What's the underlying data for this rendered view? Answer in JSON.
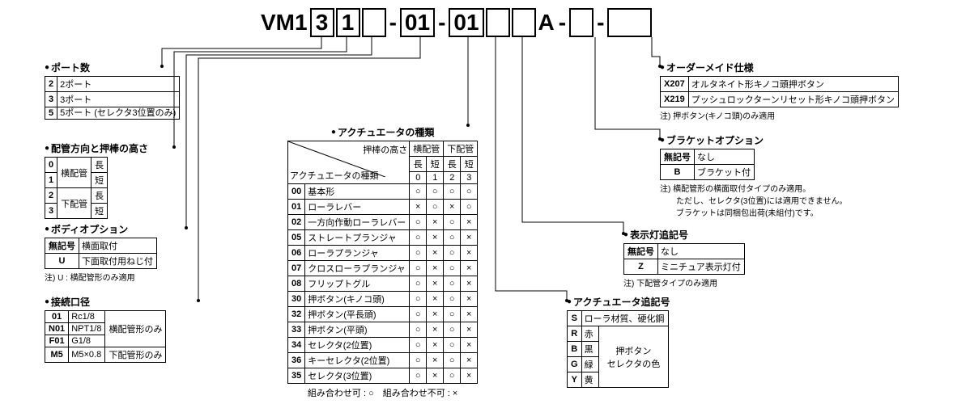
{
  "part_number": {
    "prefix": "VM1",
    "boxes": [
      "3",
      "1",
      "",
      "",
      "",
      "",
      "",
      "",
      ""
    ],
    "segment2_prefix": "01",
    "segment3_prefix": "01",
    "fixed_A": "A"
  },
  "colors": {
    "line": "#000000",
    "bg": "#ffffff",
    "text": "#000000"
  },
  "blocks": {
    "ports": {
      "title": "ポート数",
      "rows": [
        [
          "2",
          "2ポート"
        ],
        [
          "3",
          "3ポート"
        ],
        [
          "5",
          "5ポート\n(セレクタ3位置のみ)"
        ]
      ]
    },
    "piping": {
      "title": "配管方向と押棒の高さ",
      "rows": [
        [
          "0",
          "横配管",
          "長"
        ],
        [
          "1",
          "横配管",
          "短"
        ],
        [
          "2",
          "下配管",
          "長"
        ],
        [
          "3",
          "下配管",
          "短"
        ]
      ]
    },
    "body_option": {
      "title": "ボディオプション",
      "rows": [
        [
          "無記号",
          "横面取付"
        ],
        [
          "U",
          "下面取付用ねじ付"
        ]
      ],
      "note": "注) U : 横配管形のみ適用"
    },
    "port_size": {
      "title": "接続口径",
      "rows": [
        [
          "01",
          "Rc1/8",
          "横配管形のみ"
        ],
        [
          "N01",
          "NPT1/8",
          "横配管形のみ"
        ],
        [
          "F01",
          "G1/8",
          "横配管形のみ"
        ],
        [
          "M5",
          "M5×0.8",
          "下配管形のみ"
        ]
      ]
    },
    "actuator": {
      "title": "アクチュエータの種類",
      "col_group1": "押棒の高さ",
      "col_group2a": "横配管",
      "col_group2b": "下配管",
      "subcols": [
        "長",
        "短",
        "長",
        "短"
      ],
      "subnums": [
        "0",
        "1",
        "2",
        "3"
      ],
      "row_label": "アクチュエータの種類",
      "rows": [
        [
          "00",
          "基本形",
          [
            "○",
            "○",
            "○",
            "○"
          ]
        ],
        [
          "01",
          "ローラレバー",
          [
            "×",
            "○",
            "×",
            "○"
          ]
        ],
        [
          "02",
          "一方向作動ローラレバー",
          [
            "○",
            "×",
            "○",
            "×"
          ]
        ],
        [
          "05",
          "ストレートプランジャ",
          [
            "○",
            "×",
            "○",
            "×"
          ]
        ],
        [
          "06",
          "ローラプランジャ",
          [
            "○",
            "×",
            "○",
            "×"
          ]
        ],
        [
          "07",
          "クロスローラプランジャ",
          [
            "○",
            "×",
            "○",
            "×"
          ]
        ],
        [
          "08",
          "フリップトグル",
          [
            "○",
            "×",
            "○",
            "×"
          ]
        ],
        [
          "30",
          "押ボタン(キノコ頭)",
          [
            "○",
            "×",
            "○",
            "×"
          ]
        ],
        [
          "32",
          "押ボタン(平長頭)",
          [
            "○",
            "×",
            "○",
            "×"
          ]
        ],
        [
          "33",
          "押ボタン(平頭)",
          [
            "○",
            "×",
            "○",
            "×"
          ]
        ],
        [
          "34",
          "セレクタ(2位置)",
          [
            "○",
            "×",
            "○",
            "×"
          ]
        ],
        [
          "36",
          "キーセレクタ(2位置)",
          [
            "○",
            "×",
            "○",
            "×"
          ]
        ],
        [
          "35",
          "セレクタ(3位置)",
          [
            "○",
            "×",
            "○",
            "×"
          ]
        ]
      ],
      "legend": "組み合わせ可 : ○　組み合わせ不可 : ×"
    },
    "actuator_suffix": {
      "title": "アクチュエータ追記号",
      "rows": [
        [
          "S",
          "ローラ材質、硬化鋼"
        ],
        [
          "R",
          "赤"
        ],
        [
          "B",
          "黒"
        ],
        [
          "G",
          "緑"
        ],
        [
          "Y",
          "黄"
        ]
      ],
      "group_label": "押ボタン\nセレクタの色"
    },
    "indicator": {
      "title": "表示灯追記号",
      "rows": [
        [
          "無記号",
          "なし"
        ],
        [
          "Z",
          "ミニチュア表示灯付"
        ]
      ],
      "note": "注) 下配管タイプのみ適用"
    },
    "bracket": {
      "title": "ブラケットオプション",
      "rows": [
        [
          "無記号",
          "なし"
        ],
        [
          "B",
          "ブラケット付"
        ]
      ],
      "note": "注) 横配管形の横面取付タイプのみ適用。\n　　ただし、セレクタ(3位置)には適用できません。\n　　ブラケットは同梱包出荷(未組付)です。"
    },
    "order_made": {
      "title": "オーダーメイド仕様",
      "rows": [
        [
          "X207",
          "オルタネイト形キノコ頭押ボタン"
        ],
        [
          "X219",
          "プッシュロックターンリセット形キノコ頭押ボタン"
        ]
      ],
      "note": "注) 押ボタン(キノコ頭)のみ適用"
    }
  }
}
